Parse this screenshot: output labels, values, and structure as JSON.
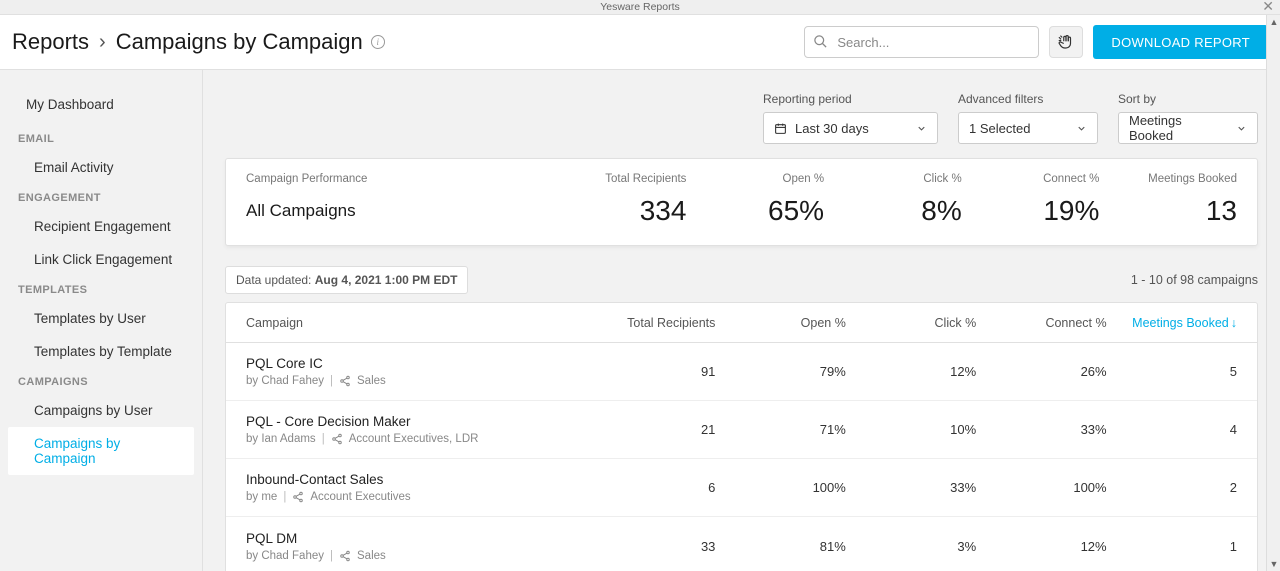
{
  "window": {
    "title": "Yesware Reports"
  },
  "header": {
    "breadcrumb_root": "Reports",
    "breadcrumb_current": "Campaigns by Campaign",
    "search_placeholder": "Search...",
    "download_label": "DOWNLOAD REPORT"
  },
  "sidebar": {
    "top_item": "My Dashboard",
    "groups": [
      {
        "label": "EMAIL",
        "items": [
          "Email Activity"
        ]
      },
      {
        "label": "ENGAGEMENT",
        "items": [
          "Recipient Engagement",
          "Link Click Engagement"
        ]
      },
      {
        "label": "TEMPLATES",
        "items": [
          "Templates by User",
          "Templates by Template"
        ]
      },
      {
        "label": "CAMPAIGNS",
        "items": [
          "Campaigns by User",
          "Campaigns by Campaign"
        ]
      }
    ],
    "active": "Campaigns by Campaign"
  },
  "filters": {
    "period": {
      "label": "Reporting period",
      "value": "Last 30 days"
    },
    "advanced": {
      "label": "Advanced filters",
      "value": "1 Selected"
    },
    "sort": {
      "label": "Sort by",
      "value": "Meetings Booked"
    }
  },
  "summary": {
    "headers": [
      "Campaign Performance",
      "Total Recipients",
      "Open %",
      "Click %",
      "Connect %",
      "Meetings Booked"
    ],
    "title": "All Campaigns",
    "values": [
      "334",
      "65%",
      "8%",
      "19%",
      "13"
    ]
  },
  "meta": {
    "updated_prefix": "Data updated:",
    "updated_value": "Aug 4, 2021 1:00 PM EDT",
    "pagination": "1 - 10 of 98 campaigns"
  },
  "table": {
    "columns": [
      "Campaign",
      "Total Recipients",
      "Open %",
      "Click %",
      "Connect %",
      "Meetings Booked"
    ],
    "sorted_col_index": 5,
    "sort_dir": "desc",
    "rows": [
      {
        "name": "PQL Core IC",
        "by": "Chad Fahey",
        "groups": "Sales",
        "recipients": "91",
        "open": "79%",
        "click": "12%",
        "connect": "26%",
        "meetings": "5"
      },
      {
        "name": "PQL - Core Decision Maker",
        "by": "Ian Adams",
        "groups": "Account Executives, LDR",
        "recipients": "21",
        "open": "71%",
        "click": "10%",
        "connect": "33%",
        "meetings": "4"
      },
      {
        "name": "Inbound-Contact Sales",
        "by": "me",
        "groups": "Account Executives",
        "recipients": "6",
        "open": "100%",
        "click": "33%",
        "connect": "100%",
        "meetings": "2"
      },
      {
        "name": "PQL DM",
        "by": "Chad Fahey",
        "groups": "Sales",
        "recipients": "33",
        "open": "81%",
        "click": "3%",
        "connect": "12%",
        "meetings": "1"
      }
    ]
  },
  "colors": {
    "accent": "#00aee6",
    "text": "#2a2a2a",
    "muted": "#888888",
    "border": "#e0e0e0",
    "bg": "#f2f2f2",
    "panel": "#ffffff"
  }
}
